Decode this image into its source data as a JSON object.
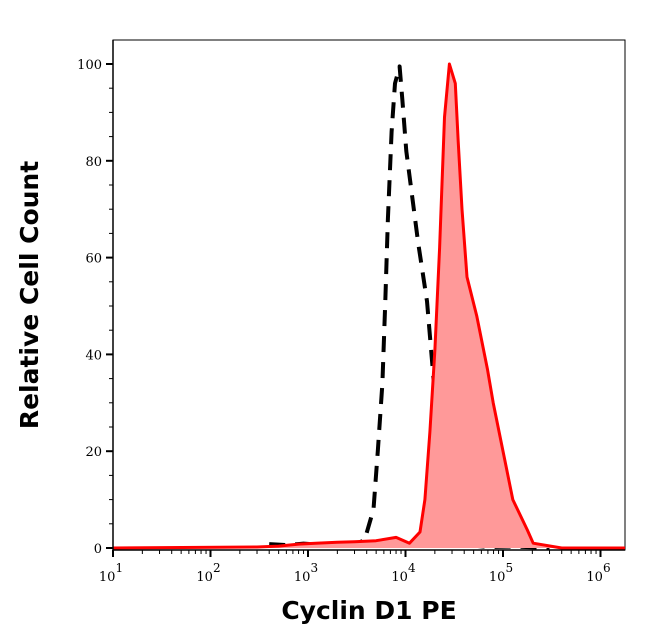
{
  "chart_data": {
    "type": "area",
    "title": "",
    "xlabel": "Cyclin D1 PE",
    "ylabel": "Relative Cell Count",
    "xscale": "log",
    "xlim": [
      10,
      1800000
    ],
    "ylim": [
      0,
      105
    ],
    "grid": false,
    "x_ticks": [
      {
        "base": "10",
        "exp": "1",
        "value": 10
      },
      {
        "base": "10",
        "exp": "2",
        "value": 100
      },
      {
        "base": "10",
        "exp": "3",
        "value": 1000
      },
      {
        "base": "10",
        "exp": "4",
        "value": 10000
      },
      {
        "base": "10",
        "exp": "5",
        "value": 100000
      },
      {
        "base": "10",
        "exp": "6",
        "value": 1000000
      }
    ],
    "y_ticks": [
      "0",
      "20",
      "40",
      "60",
      "80",
      "100"
    ],
    "series": [
      {
        "style": "dashed-black-unfilled",
        "color": "#000000",
        "x": [
          400,
          600,
          900,
          1300,
          2000,
          3000,
          3800,
          4700,
          5200,
          5800,
          6200,
          6600,
          7200,
          7800,
          8700,
          9300,
          10200,
          12000,
          13500,
          16600,
          19000,
          21400,
          25100,
          30900,
          50000,
          70000,
          130000,
          300000
        ],
        "y": [
          0.8,
          0.6,
          0.9,
          0.7,
          0.9,
          0.8,
          1.6,
          8,
          20,
          34,
          51,
          68,
          86,
          96,
          99.5,
          92.5,
          82,
          71,
          63,
          51,
          37,
          24,
          9,
          1.6,
          0.5,
          0.2,
          0.3,
          0
        ]
      },
      {
        "style": "red-filled",
        "color": "#ff0000",
        "fill": "#ff9999",
        "x": [
          10,
          300,
          500,
          800,
          1200,
          2000,
          3000,
          5000,
          8000,
          11000,
          14100,
          15800,
          17800,
          20000,
          22400,
          25100,
          28200,
          32400,
          34700,
          38000,
          42700,
          53700,
          69200,
          79400,
          100000,
          125900,
          177800,
          204200,
          400000,
          1800000
        ],
        "y": [
          0,
          0.2,
          0.4,
          0.8,
          1,
          1.2,
          1.3,
          1.5,
          2.2,
          1,
          3.3,
          10,
          24,
          41,
          62,
          89,
          100,
          96,
          84,
          70,
          56,
          48,
          37,
          30,
          20,
          10,
          3.7,
          1,
          0,
          0
        ]
      }
    ]
  }
}
